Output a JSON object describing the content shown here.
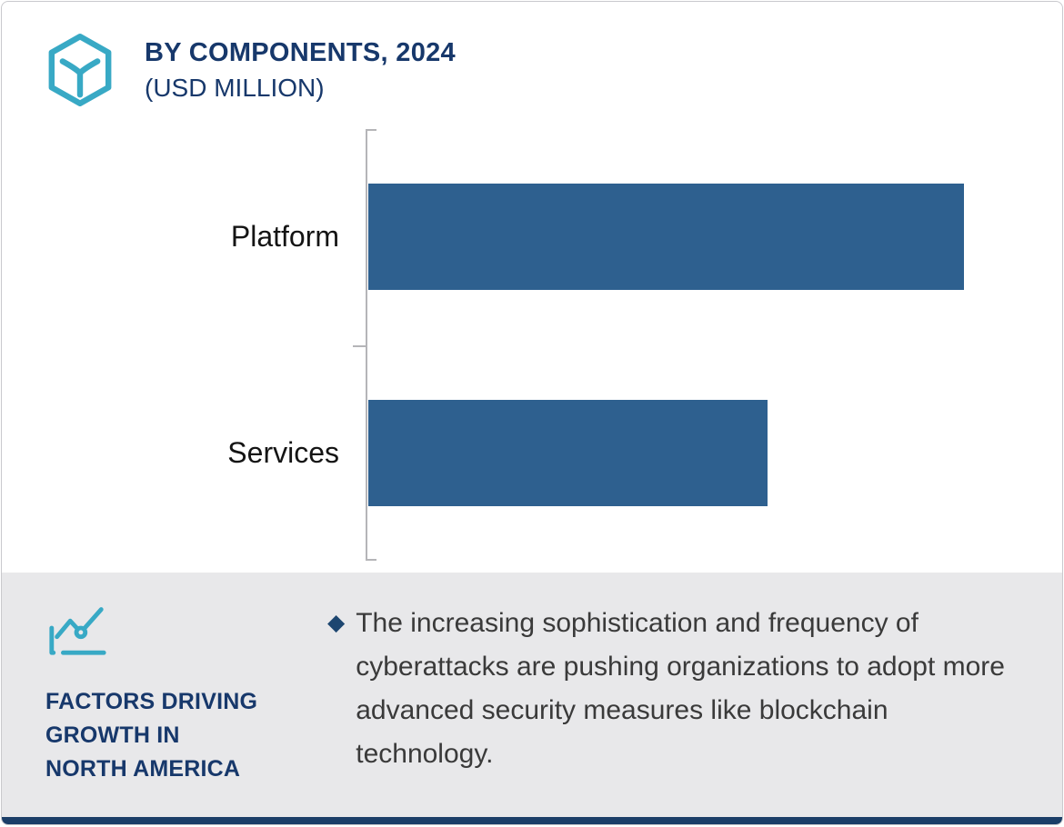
{
  "header": {
    "title": "BY COMPONENTS, 2024",
    "subtitle": "(USD MILLION)"
  },
  "chart_data": {
    "type": "bar",
    "orientation": "horizontal",
    "title": "BY COMPONENTS, 2024 (USD MILLION)",
    "categories": [
      "Platform",
      "Services"
    ],
    "values": [
      100,
      67
    ],
    "value_note": "no numeric labels or axis ticks shown; values are relative bar lengths as % of the longest bar",
    "xlabel": "",
    "ylabel": "",
    "grid": false,
    "legend": false,
    "bar_color": "#2e608f"
  },
  "footer": {
    "icon": "trend-line-chart-icon",
    "heading_lines": [
      "FACTORS DRIVING",
      "GROWTH IN",
      "NORTH AMERICA"
    ],
    "bullet_marker": "◆",
    "bullet_text": "The increasing sophistication and frequency of cyberattacks are pushing organizations to adopt more advanced security measures like blockchain technology."
  },
  "colors": {
    "navy": "#17386b",
    "teal": "#38a9c5",
    "bar": "#2e608f",
    "panel_bg": "#e8e8ea",
    "axis": "#b5b5b8",
    "footer_strip": "#1b3e68",
    "body_text": "#3a3a3a"
  }
}
